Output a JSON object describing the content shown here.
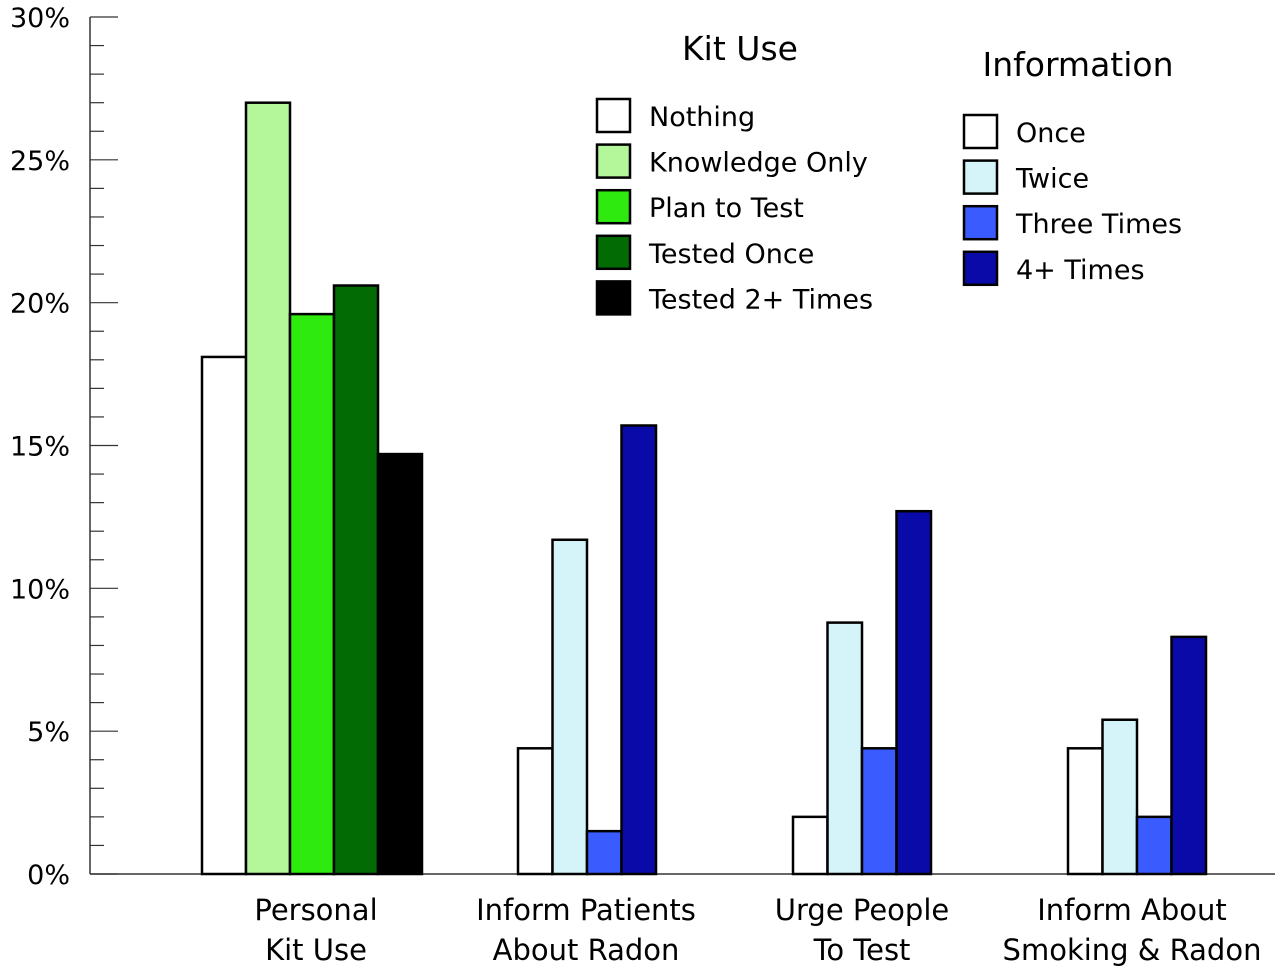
{
  "chart_data": {
    "type": "bar",
    "ylim": [
      0,
      30
    ],
    "yticks": [
      "0%",
      "5%",
      "10%",
      "15%",
      "20%",
      "25%",
      "30%"
    ],
    "grid": false,
    "groups": [
      {
        "label_lines": [
          "Personal",
          "Kit Use"
        ],
        "legend": "Kit Use",
        "bars": [
          {
            "series": "Nothing",
            "value": 18.1,
            "color": "#ffffff"
          },
          {
            "series": "Knowledge Only",
            "value": 27.0,
            "color": "#b3f79a"
          },
          {
            "series": "Plan to Test",
            "value": 19.6,
            "color": "#2eea0f"
          },
          {
            "series": "Tested Once",
            "value": 20.6,
            "color": "#036b03"
          },
          {
            "series": "Tested 2+ Times",
            "value": 14.7,
            "color": "#000000"
          }
        ]
      },
      {
        "label_lines": [
          "Inform Patients",
          "About Radon"
        ],
        "legend": "Information",
        "bars": [
          {
            "series": "Once",
            "value": 4.4,
            "color": "#ffffff"
          },
          {
            "series": "Twice",
            "value": 11.7,
            "color": "#d4f4fa"
          },
          {
            "series": "Three Times",
            "value": 1.5,
            "color": "#3a5cff"
          },
          {
            "series": "4+ Times",
            "value": 15.7,
            "color": "#0a0aa8"
          }
        ]
      },
      {
        "label_lines": [
          "Urge People",
          "To Test"
        ],
        "legend": "Information",
        "bars": [
          {
            "series": "Once",
            "value": 2.0,
            "color": "#ffffff"
          },
          {
            "series": "Twice",
            "value": 8.8,
            "color": "#d4f4fa"
          },
          {
            "series": "Three Times",
            "value": 4.4,
            "color": "#3a5cff"
          },
          {
            "series": "4+ Times",
            "value": 12.7,
            "color": "#0a0aa8"
          }
        ]
      },
      {
        "label_lines": [
          "Inform About",
          "Smoking & Radon"
        ],
        "legend": "Information",
        "bars": [
          {
            "series": "Once",
            "value": 4.4,
            "color": "#ffffff"
          },
          {
            "series": "Twice",
            "value": 5.4,
            "color": "#d4f4fa"
          },
          {
            "series": "Three Times",
            "value": 2.0,
            "color": "#3a5cff"
          },
          {
            "series": "4+ Times",
            "value": 8.3,
            "color": "#0a0aa8"
          }
        ]
      }
    ],
    "legends": [
      {
        "title": "Kit Use",
        "placement": "top-center",
        "entries": [
          {
            "label": "Nothing",
            "color": "#ffffff"
          },
          {
            "label": "Knowledge Only",
            "color": "#b3f79a"
          },
          {
            "label": "Plan to Test",
            "color": "#2eea0f"
          },
          {
            "label": "Tested Once",
            "color": "#036b03"
          },
          {
            "label": "Tested 2+ Times",
            "color": "#000000"
          }
        ]
      },
      {
        "title": "Information",
        "placement": "top-right",
        "entries": [
          {
            "label": "Once",
            "color": "#ffffff"
          },
          {
            "label": "Twice",
            "color": "#d4f4fa"
          },
          {
            "label": "Three Times",
            "color": "#3a5cff"
          },
          {
            "label": "4+ Times",
            "color": "#0a0aa8"
          }
        ]
      }
    ]
  }
}
